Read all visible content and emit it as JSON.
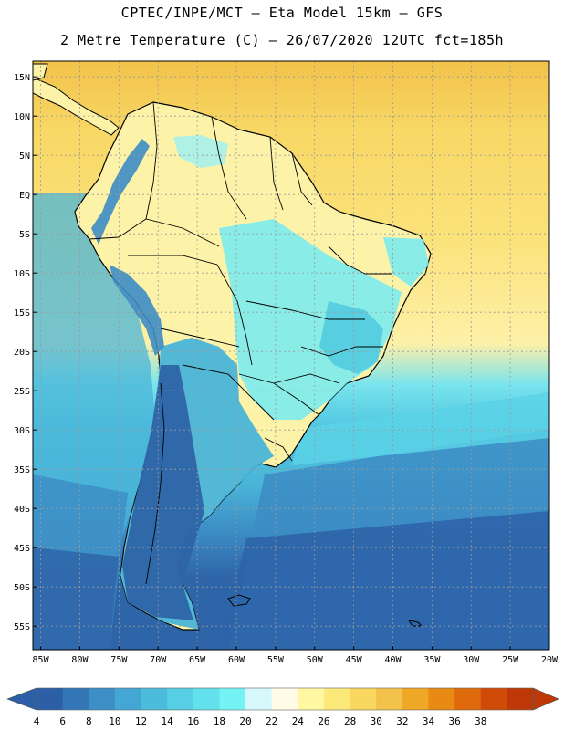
{
  "header": {
    "line1": "CPTEC/INPE/MCT –   Eta Model 15km – GFS",
    "line2": "2 Metre Temperature (C) – 26/07/2020 12UTC fct=185h"
  },
  "map": {
    "lat_labels": [
      "15N",
      "10N",
      "5N",
      "EQ",
      "5S",
      "10S",
      "15S",
      "20S",
      "25S",
      "30S",
      "35S",
      "40S",
      "45S",
      "50S",
      "55S"
    ],
    "lon_labels": [
      "85W",
      "80W",
      "75W",
      "70W",
      "65W",
      "60W",
      "55W",
      "50W",
      "45W",
      "40W",
      "35W",
      "30W",
      "25W",
      "20W"
    ],
    "extent": {
      "lon_min": -86,
      "lon_max": -20,
      "lat_min": -58,
      "lat_max": 17
    },
    "colors": {
      "ocean_warm": "#f8d866",
      "ocean_hot": "#f2c24a",
      "land_mid": "#fdf3a8",
      "land_cool": "#6ee8ee",
      "deep": "#2e64a8",
      "mid_blue": "#3c8cc4",
      "cyan": "#4cc8de",
      "grid": "#9a9a9a"
    }
  },
  "colorbar": {
    "labels": [
      "4",
      "6",
      "8",
      "10",
      "12",
      "14",
      "16",
      "18",
      "20",
      "22",
      "24",
      "26",
      "28",
      "30",
      "32",
      "34",
      "36",
      "38"
    ],
    "colors": [
      "#2c5fa5",
      "#3477b6",
      "#3c8fc6",
      "#44a6d4",
      "#4cbcdd",
      "#56cee4",
      "#62e0ec",
      "#74f2f4",
      "#d6f8fc",
      "#fffbe6",
      "#fff7a2",
      "#fde97a",
      "#f9d75e",
      "#f2c24a",
      "#eea826",
      "#e88a14",
      "#df6a0c",
      "#d04a08",
      "#bd3806"
    ],
    "under_color": "#2c5fa5",
    "over_color": "#bd3806"
  }
}
